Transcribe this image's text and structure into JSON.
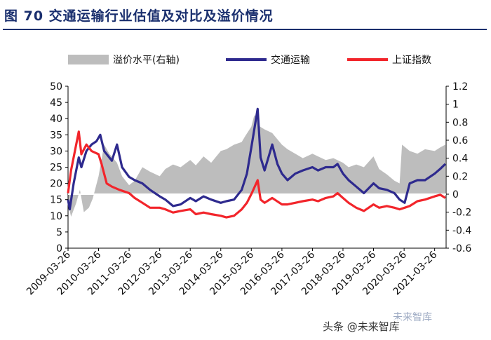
{
  "title": "图 70 交通运输行业估值及对比及溢价情况",
  "watermark": "未来智库",
  "watermark2": "头条 @未来智库",
  "chart_data": {
    "type": "line",
    "title": "图 70 交通运输行业估值及对比及溢价情况",
    "legend_position": "top",
    "grid": false,
    "left_axis": {
      "ylim": [
        0,
        50
      ],
      "ticks": [
        "0",
        "5",
        "10",
        "15",
        "20",
        "25",
        "30",
        "35",
        "40",
        "45",
        "50"
      ]
    },
    "right_axis": {
      "ylim": [
        -0.6,
        1.2
      ],
      "ticks": [
        "-0.6",
        "-0.4",
        "-0.2",
        "0",
        "0.2",
        "0.4",
        "0.6",
        "0.8",
        "1",
        "1.2"
      ]
    },
    "x_ticks": [
      "2009-03-26",
      "2010-03-26",
      "2011-03-26",
      "2012-03-26",
      "2013-03-26",
      "2014-03-26",
      "2015-03-26",
      "2016-03-26",
      "2017-03-26",
      "2018-03-26",
      "2019-03-26",
      "2020-03-26",
      "2021-03-26"
    ],
    "series": [
      {
        "name": "溢价水平(右轴)",
        "type": "area",
        "axis": "right",
        "color": "#bdbdbd",
        "points": [
          [
            "2009-03-26",
            -0.1
          ],
          [
            "2009-05-01",
            -0.25
          ],
          [
            "2009-07-01",
            -0.1
          ],
          [
            "2009-08-15",
            0.05
          ],
          [
            "2009-10-01",
            -0.2
          ],
          [
            "2009-12-01",
            -0.15
          ],
          [
            "2010-01-15",
            -0.05
          ],
          [
            "2010-03-26",
            0.2
          ],
          [
            "2010-06-01",
            0.55
          ],
          [
            "2010-08-01",
            0.45
          ],
          [
            "2010-11-01",
            0.35
          ],
          [
            "2011-01-01",
            0.2
          ],
          [
            "2011-03-26",
            0.1
          ],
          [
            "2011-06-01",
            0.15
          ],
          [
            "2011-09-01",
            0.3
          ],
          [
            "2011-12-01",
            0.25
          ],
          [
            "2012-03-26",
            0.2
          ],
          [
            "2012-06-01",
            0.28
          ],
          [
            "2012-09-01",
            0.33
          ],
          [
            "2012-12-01",
            0.3
          ],
          [
            "2013-03-26",
            0.38
          ],
          [
            "2013-06-01",
            0.32
          ],
          [
            "2013-09-01",
            0.42
          ],
          [
            "2013-12-01",
            0.35
          ],
          [
            "2014-03-26",
            0.48
          ],
          [
            "2014-06-01",
            0.5
          ],
          [
            "2014-09-01",
            0.55
          ],
          [
            "2014-12-01",
            0.58
          ],
          [
            "2015-01-15",
            0.65
          ],
          [
            "2015-03-26",
            0.75
          ],
          [
            "2015-05-01",
            0.88
          ],
          [
            "2015-06-10",
            0.82
          ],
          [
            "2015-07-10",
            0.75
          ],
          [
            "2015-09-01",
            0.72
          ],
          [
            "2015-12-01",
            0.68
          ],
          [
            "2016-03-26",
            0.55
          ],
          [
            "2016-06-01",
            0.5
          ],
          [
            "2016-09-01",
            0.45
          ],
          [
            "2016-12-01",
            0.4
          ],
          [
            "2017-03-26",
            0.45
          ],
          [
            "2017-06-01",
            0.42
          ],
          [
            "2017-09-01",
            0.38
          ],
          [
            "2017-12-01",
            0.4
          ],
          [
            "2018-03-26",
            0.35
          ],
          [
            "2018-06-01",
            0.3
          ],
          [
            "2018-09-01",
            0.33
          ],
          [
            "2018-12-01",
            0.3
          ],
          [
            "2019-03-26",
            0.42
          ],
          [
            "2019-06-01",
            0.28
          ],
          [
            "2019-09-01",
            0.22
          ],
          [
            "2019-12-01",
            0.15
          ],
          [
            "2020-02-01",
            0.12
          ],
          [
            "2020-03-01",
            0.55
          ],
          [
            "2020-06-01",
            0.48
          ],
          [
            "2020-09-01",
            0.45
          ],
          [
            "2020-12-01",
            0.5
          ],
          [
            "2021-03-26",
            0.48
          ],
          [
            "2021-06-01",
            0.52
          ],
          [
            "2021-08-01",
            0.55
          ]
        ]
      },
      {
        "name": "交通运输",
        "type": "line",
        "axis": "left",
        "color": "#2e2a8e",
        "points": [
          [
            "2009-03-26",
            15
          ],
          [
            "2009-04-15",
            12
          ],
          [
            "2009-06-01",
            20
          ],
          [
            "2009-08-01",
            28
          ],
          [
            "2009-09-01",
            25
          ],
          [
            "2009-11-01",
            30
          ],
          [
            "2010-01-01",
            32
          ],
          [
            "2010-03-01",
            33
          ],
          [
            "2010-04-15",
            35
          ],
          [
            "2010-06-01",
            30
          ],
          [
            "2010-09-01",
            27
          ],
          [
            "2010-11-01",
            32
          ],
          [
            "2011-01-01",
            25
          ],
          [
            "2011-03-26",
            22
          ],
          [
            "2011-06-01",
            21
          ],
          [
            "2011-09-01",
            20
          ],
          [
            "2011-12-01",
            18
          ],
          [
            "2012-03-26",
            16
          ],
          [
            "2012-06-01",
            15
          ],
          [
            "2012-09-01",
            13
          ],
          [
            "2012-12-01",
            13.5
          ],
          [
            "2013-03-26",
            15.5
          ],
          [
            "2013-06-01",
            14.5
          ],
          [
            "2013-09-01",
            16
          ],
          [
            "2013-12-01",
            15
          ],
          [
            "2014-03-26",
            14
          ],
          [
            "2014-06-01",
            14.5
          ],
          [
            "2014-09-01",
            15
          ],
          [
            "2014-12-01",
            18
          ],
          [
            "2015-02-01",
            23
          ],
          [
            "2015-04-01",
            32
          ],
          [
            "2015-06-10",
            43
          ],
          [
            "2015-07-15",
            28
          ],
          [
            "2015-09-01",
            24
          ],
          [
            "2015-12-01",
            32
          ],
          [
            "2016-02-01",
            26
          ],
          [
            "2016-03-26",
            23
          ],
          [
            "2016-06-01",
            21
          ],
          [
            "2016-09-01",
            23
          ],
          [
            "2016-12-01",
            24
          ],
          [
            "2017-03-26",
            25
          ],
          [
            "2017-06-01",
            24
          ],
          [
            "2017-09-01",
            25
          ],
          [
            "2017-12-01",
            25
          ],
          [
            "2018-01-20",
            26
          ],
          [
            "2018-03-26",
            23
          ],
          [
            "2018-06-01",
            21
          ],
          [
            "2018-09-01",
            19
          ],
          [
            "2018-12-01",
            17
          ],
          [
            "2019-03-26",
            20
          ],
          [
            "2019-06-01",
            18.5
          ],
          [
            "2019-09-01",
            18
          ],
          [
            "2019-12-01",
            17
          ],
          [
            "2020-02-01",
            15
          ],
          [
            "2020-04-01",
            14
          ],
          [
            "2020-06-01",
            20
          ],
          [
            "2020-09-01",
            21
          ],
          [
            "2020-12-01",
            21
          ],
          [
            "2021-03-26",
            23
          ],
          [
            "2021-06-01",
            24.5
          ],
          [
            "2021-08-01",
            26
          ]
        ]
      },
      {
        "name": "上证指数",
        "type": "line",
        "axis": "left",
        "color": "#f2252b",
        "points": [
          [
            "2009-03-26",
            17
          ],
          [
            "2009-05-01",
            24
          ],
          [
            "2009-08-01",
            36
          ],
          [
            "2009-09-01",
            29
          ],
          [
            "2009-11-01",
            32
          ],
          [
            "2010-01-01",
            30
          ],
          [
            "2010-03-26",
            29
          ],
          [
            "2010-05-01",
            26
          ],
          [
            "2010-07-01",
            20
          ],
          [
            "2010-09-01",
            19
          ],
          [
            "2010-12-01",
            18
          ],
          [
            "2011-03-26",
            17
          ],
          [
            "2011-06-01",
            15.5
          ],
          [
            "2011-09-01",
            14
          ],
          [
            "2011-12-01",
            12.5
          ],
          [
            "2012-03-26",
            12.5
          ],
          [
            "2012-06-01",
            12
          ],
          [
            "2012-09-01",
            11
          ],
          [
            "2012-12-01",
            11.5
          ],
          [
            "2013-03-26",
            12
          ],
          [
            "2013-06-01",
            10.5
          ],
          [
            "2013-09-01",
            11
          ],
          [
            "2013-12-01",
            10.5
          ],
          [
            "2014-03-26",
            10
          ],
          [
            "2014-06-01",
            9.5
          ],
          [
            "2014-09-01",
            10
          ],
          [
            "2014-12-01",
            12
          ],
          [
            "2015-02-01",
            14
          ],
          [
            "2015-04-01",
            17
          ],
          [
            "2015-06-10",
            21
          ],
          [
            "2015-07-15",
            15
          ],
          [
            "2015-09-01",
            14
          ],
          [
            "2015-12-01",
            15.5
          ],
          [
            "2016-03-26",
            13.5
          ],
          [
            "2016-06-01",
            13.5
          ],
          [
            "2016-09-01",
            14
          ],
          [
            "2016-12-01",
            14.5
          ],
          [
            "2017-03-26",
            15
          ],
          [
            "2017-06-01",
            14.5
          ],
          [
            "2017-09-01",
            15.5
          ],
          [
            "2017-12-01",
            16
          ],
          [
            "2018-01-20",
            17
          ],
          [
            "2018-03-26",
            15.5
          ],
          [
            "2018-06-01",
            14
          ],
          [
            "2018-09-01",
            12.5
          ],
          [
            "2018-12-01",
            11.5
          ],
          [
            "2019-03-26",
            13.5
          ],
          [
            "2019-06-01",
            12.5
          ],
          [
            "2019-09-01",
            13
          ],
          [
            "2019-12-01",
            12.5
          ],
          [
            "2020-02-01",
            12
          ],
          [
            "2020-04-01",
            12.5
          ],
          [
            "2020-06-01",
            13
          ],
          [
            "2020-09-01",
            14.5
          ],
          [
            "2020-12-01",
            15
          ],
          [
            "2021-03-26",
            16
          ],
          [
            "2021-06-01",
            16.5
          ],
          [
            "2021-08-01",
            15.5
          ]
        ]
      }
    ]
  }
}
